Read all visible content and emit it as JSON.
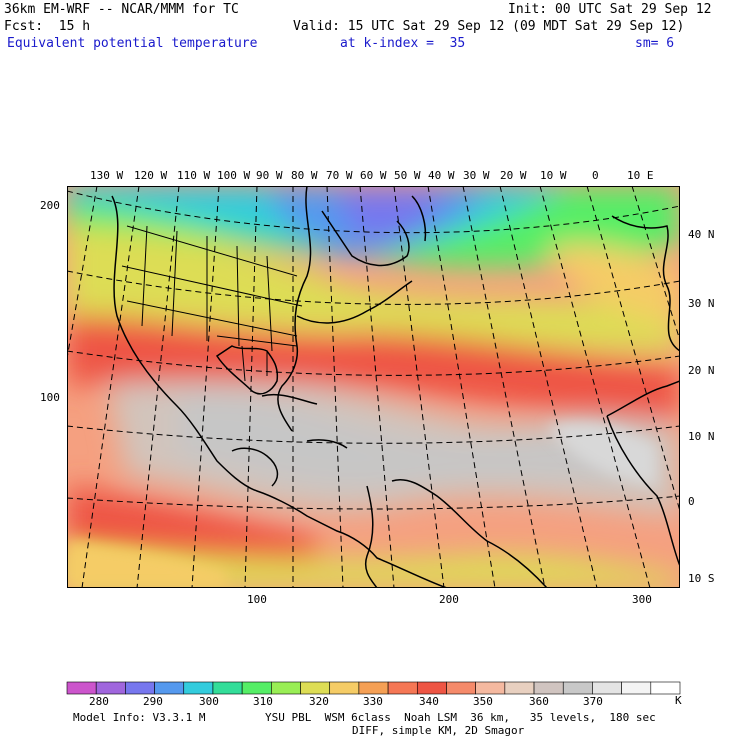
{
  "header": {
    "model_title": "36km EM-WRF -- NCAR/MMM for TC",
    "init": "Init: 00 UTC Sat 29 Sep 12",
    "fcst": "Fcst:  15 h",
    "valid": "Valid: 15 UTC Sat 29 Sep 12 (09 MDT Sat 29 Sep 12)",
    "field": "Equivalent potential temperature",
    "level": "at k-index =  35",
    "smooth": "sm= 6"
  },
  "map": {
    "top_lon_labels": [
      "130 W",
      "120 W",
      "110 W",
      "100 W",
      "90 W",
      "80 W",
      "70 W",
      "60 W",
      "50 W",
      "40 W",
      "30 W",
      "20 W",
      "10 W",
      "0",
      "10 E"
    ],
    "right_lat_labels": [
      "40 N",
      "30 N",
      "20 N",
      "10 N",
      "0",
      "10 S"
    ],
    "left_grid_labels": [
      "200",
      "100"
    ],
    "bottom_grid_labels": [
      "100",
      "200",
      "300"
    ]
  },
  "colorbar": {
    "unit": "K",
    "tick_labels": [
      "280",
      "290",
      "300",
      "310",
      "320",
      "330",
      "340",
      "350",
      "360",
      "370"
    ],
    "colors": [
      "#cc55cc",
      "#a066dd",
      "#7777ee",
      "#5599ee",
      "#33ccdd",
      "#33dd99",
      "#55ee66",
      "#99ee55",
      "#dddd55",
      "#f5cc66",
      "#f5a055",
      "#f57755",
      "#ee5544",
      "#f58a6a",
      "#f5b9a0",
      "#e8d0c0",
      "#d0c4c0",
      "#c8c8c8",
      "#e4e4e4",
      "#f4f4f4",
      "#ffffff"
    ]
  },
  "footer": {
    "model_info": "Model Info: V3.3.1 M",
    "physics": "YSU PBL  WSM 6class  Noah LSM  36 km,   35 levels,  180 sec",
    "diff": "DIFF, simple KM, 2D Smagor"
  }
}
